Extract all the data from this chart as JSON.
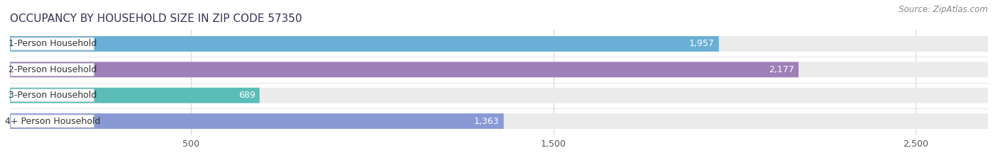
{
  "title": "OCCUPANCY BY HOUSEHOLD SIZE IN ZIP CODE 57350",
  "source": "Source: ZipAtlas.com",
  "categories": [
    "1-Person Household",
    "2-Person Household",
    "3-Person Household",
    "4+ Person Household"
  ],
  "values": [
    1957,
    2177,
    689,
    1363
  ],
  "bar_colors": [
    "#6baed6",
    "#9e7fb8",
    "#5bbcb8",
    "#8899d4"
  ],
  "xlim_max": 2700,
  "xticks": [
    500,
    1500,
    2500
  ],
  "xtick_labels": [
    "500",
    "1,500",
    "2,500"
  ],
  "bar_height": 0.6,
  "label_fontsize": 9.0,
  "value_fontsize": 9.0,
  "title_fontsize": 11,
  "source_fontsize": 8.5,
  "bg_color": "#ffffff",
  "bar_bg_color": "#ebebeb",
  "value_color_inside": "#ffffff",
  "value_color_outside": "#555555",
  "label_text_color": "#333333",
  "grid_color": "#dddddd",
  "title_color": "#333355"
}
